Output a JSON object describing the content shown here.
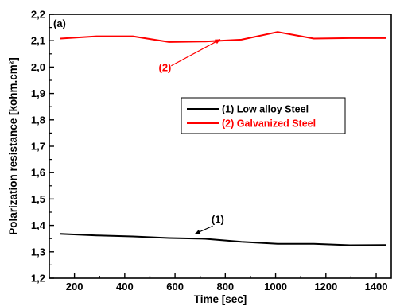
{
  "chart_data": {
    "type": "line",
    "panel_label": "(a)",
    "xlabel": "Time [sec]",
    "ylabel": "Polarization resistance [kohm.cm²]",
    "xlim": [
      100,
      1460
    ],
    "ylim": [
      1.2,
      2.2
    ],
    "xticks": [
      200,
      400,
      600,
      800,
      1000,
      1200,
      1400
    ],
    "yticks": [
      1.2,
      1.3,
      1.4,
      1.5,
      1.6,
      1.7,
      1.8,
      1.9,
      2.0,
      2.1,
      2.2
    ],
    "xtick_labels": [
      "200",
      "400",
      "600",
      "800",
      "1000",
      "1200",
      "1400"
    ],
    "ytick_labels": [
      "1,2",
      "1,3",
      "1,4",
      "1,5",
      "1,6",
      "1,7",
      "1,8",
      "1,9",
      "2,0",
      "2,1",
      "2,2"
    ],
    "grid": false,
    "legend_position": "middle-right",
    "series": [
      {
        "name": "(1) Low alloy Steel",
        "color": "#000000",
        "x": [
          144,
          288,
          432,
          576,
          720,
          864,
          1008,
          1152,
          1296,
          1440
        ],
        "y": [
          1.368,
          1.362,
          1.358,
          1.352,
          1.349,
          1.338,
          1.33,
          1.33,
          1.325,
          1.326
        ]
      },
      {
        "name": "(2) Galvanized Steel",
        "color": "#ff0000",
        "x": [
          144,
          288,
          432,
          576,
          720,
          864,
          1008,
          1152,
          1296,
          1440
        ],
        "y": [
          2.108,
          2.117,
          2.117,
          2.095,
          2.097,
          2.104,
          2.133,
          2.108,
          2.11,
          2.11
        ]
      }
    ],
    "annotations": [
      {
        "text": "(1)",
        "color": "#000000",
        "label_at": [
          770,
          1.41
        ],
        "arrow_to": [
          680,
          1.368
        ],
        "arrow_from": [
          750,
          1.398
        ]
      },
      {
        "text": "(2)",
        "color": "#ff0000",
        "label_at": [
          560,
          1.985
        ],
        "arrow_to": [
          780,
          2.105
        ],
        "arrow_from": [
          585,
          2.005
        ]
      }
    ]
  }
}
